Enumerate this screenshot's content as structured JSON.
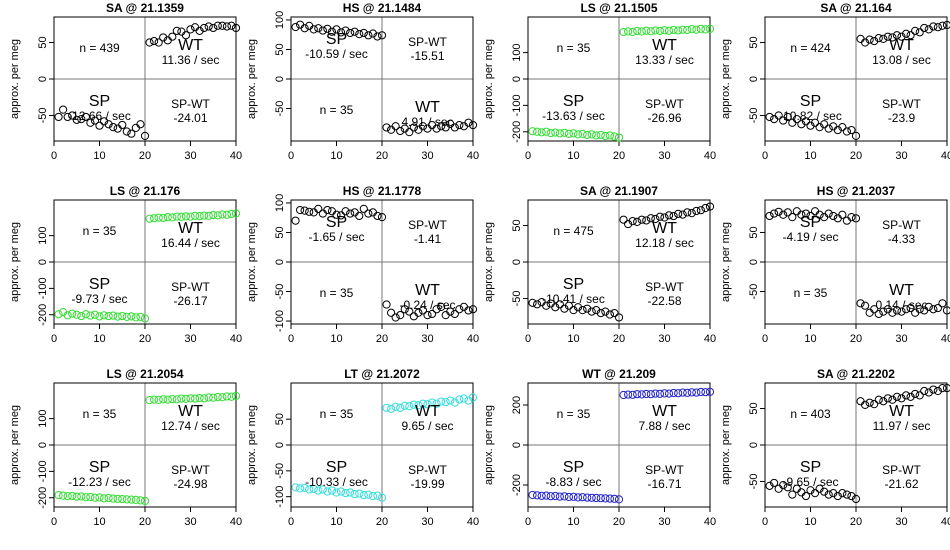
{
  "chart_data": [
    {
      "type": "scatter",
      "title": "SA @ 21.1359",
      "ylabel": "approx. per meg",
      "color": "#000000",
      "xlim": [
        0,
        40
      ],
      "ylim": [
        -85,
        85
      ],
      "yticks": [
        -50,
        0,
        50
      ],
      "xticks": [
        0,
        10,
        20,
        30,
        40
      ],
      "n_label": "n = 439",
      "sp_label": "SP",
      "sp_rate": "-12.66 / sec",
      "wt_label": "WT",
      "wt_rate": "11.36 / sec",
      "diff_label": "SP-WT",
      "diff_value": "-24.01",
      "x": [
        1,
        2,
        3,
        4,
        5,
        6,
        7,
        8,
        9,
        10,
        11,
        12,
        13,
        14,
        15,
        16,
        17,
        18,
        19,
        20,
        21,
        22,
        23,
        24,
        25,
        26,
        27,
        28,
        29,
        30,
        31,
        32,
        33,
        34,
        35,
        36,
        37,
        38,
        39,
        40
      ],
      "y": [
        -52,
        -42,
        -52,
        -50,
        -56,
        -55,
        -52,
        -60,
        -57,
        -64,
        -58,
        -62,
        -66,
        -68,
        -63,
        -72,
        -75,
        -67,
        -62,
        -78,
        50,
        52,
        50,
        57,
        53,
        58,
        66,
        65,
        60,
        68,
        71,
        66,
        70,
        72,
        70,
        73,
        73,
        72,
        73,
        70
      ]
    },
    {
      "type": "scatter",
      "title": "HS @ 21.1484",
      "ylabel": "approx. per meg",
      "color": "#000000",
      "xlim": [
        0,
        40
      ],
      "ylim": [
        -105,
        105
      ],
      "yticks": [
        -50,
        0,
        50,
        100
      ],
      "xticks": [
        0,
        10,
        20,
        30,
        40
      ],
      "n_label": "n = 35",
      "sp_label": "SP",
      "sp_rate": "-10.59 / sec",
      "wt_label": "WT",
      "wt_rate": "4.91 / sec",
      "diff_label": "SP-WT",
      "diff_value": "-15.51",
      "x": [
        1,
        2,
        3,
        4,
        5,
        6,
        7,
        8,
        9,
        10,
        11,
        12,
        13,
        14,
        15,
        16,
        17,
        18,
        19,
        20,
        21,
        22,
        23,
        24,
        25,
        26,
        27,
        28,
        29,
        30,
        31,
        32,
        33,
        34,
        35,
        36,
        37,
        38,
        39,
        40
      ],
      "y": [
        88,
        92,
        86,
        90,
        84,
        86,
        82,
        85,
        80,
        84,
        79,
        82,
        78,
        80,
        76,
        78,
        74,
        77,
        72,
        74,
        -82,
        -86,
        -80,
        -88,
        -84,
        -90,
        -82,
        -86,
        -80,
        -84,
        -78,
        -84,
        -80,
        -82,
        -76,
        -82,
        -78,
        -80,
        -74,
        -78
      ]
    },
    {
      "type": "scatter",
      "title": "LS @ 21.1505",
      "ylabel": "approx. per meg",
      "color": "#33dd33",
      "xlim": [
        0,
        40
      ],
      "ylim": [
        -235,
        235
      ],
      "yticks": [
        -200,
        -100,
        0,
        100
      ],
      "xticks": [
        0,
        10,
        20,
        30,
        40
      ],
      "n_label": "n = 35",
      "sp_label": "SP",
      "sp_rate": "-13.63 / sec",
      "wt_label": "WT",
      "wt_rate": "13.33 / sec",
      "diff_label": "SP-WT",
      "diff_value": "-26.96",
      "x": [
        1,
        2,
        3,
        4,
        5,
        6,
        7,
        8,
        9,
        10,
        11,
        12,
        13,
        14,
        15,
        16,
        17,
        18,
        19,
        20,
        21,
        22,
        23,
        24,
        25,
        26,
        27,
        28,
        29,
        30,
        31,
        32,
        33,
        34,
        35,
        36,
        37,
        38,
        39,
        40
      ],
      "y": [
        -198,
        -200,
        -202,
        -200,
        -205,
        -203,
        -206,
        -204,
        -208,
        -206,
        -210,
        -208,
        -212,
        -210,
        -214,
        -212,
        -216,
        -214,
        -218,
        -222,
        178,
        180,
        178,
        182,
        180,
        183,
        181,
        184,
        182,
        185,
        183,
        186,
        184,
        187,
        186,
        189,
        187,
        190,
        188,
        190
      ]
    },
    {
      "type": "scatter",
      "title": "SA @ 21.164",
      "ylabel": "approx. per meg",
      "color": "#000000",
      "xlim": [
        0,
        40
      ],
      "ylim": [
        -85,
        85
      ],
      "yticks": [
        -50,
        0,
        50
      ],
      "xticks": [
        0,
        10,
        20,
        30,
        40
      ],
      "n_label": "n = 424",
      "sp_label": "SP",
      "sp_rate": "-10.82 / sec",
      "wt_label": "WT",
      "wt_rate": "13.08 / sec",
      "diff_label": "SP-WT",
      "diff_value": "-23.9",
      "x": [
        1,
        2,
        3,
        4,
        5,
        6,
        7,
        8,
        9,
        10,
        11,
        12,
        13,
        14,
        15,
        16,
        17,
        18,
        19,
        20,
        21,
        22,
        23,
        24,
        25,
        26,
        27,
        28,
        29,
        30,
        31,
        32,
        33,
        34,
        35,
        36,
        37,
        38,
        39,
        40
      ],
      "y": [
        -52,
        -55,
        -50,
        -57,
        -52,
        -60,
        -55,
        -62,
        -58,
        -64,
        -60,
        -66,
        -62,
        -68,
        -65,
        -70,
        -66,
        -72,
        -70,
        -78,
        55,
        50,
        54,
        52,
        56,
        55,
        58,
        57,
        60,
        58,
        62,
        60,
        66,
        64,
        70,
        68,
        72,
        71,
        73,
        74
      ]
    },
    {
      "type": "scatter",
      "title": "LS @ 21.176",
      "ylabel": "approx. per meg",
      "color": "#33dd33",
      "xlim": [
        0,
        40
      ],
      "ylim": [
        -235,
        235
      ],
      "yticks": [
        -200,
        -100,
        0,
        100
      ],
      "xticks": [
        0,
        10,
        20,
        30,
        40
      ],
      "n_label": "n = 35",
      "sp_label": "SP",
      "sp_rate": "-9.73 / sec",
      "wt_label": "WT",
      "wt_rate": "16.44 / sec",
      "diff_label": "SP-WT",
      "diff_value": "-26.17",
      "x": [
        1,
        2,
        3,
        4,
        5,
        6,
        7,
        8,
        9,
        10,
        11,
        12,
        13,
        14,
        15,
        16,
        17,
        18,
        19,
        20,
        21,
        22,
        23,
        24,
        25,
        26,
        27,
        28,
        29,
        30,
        31,
        32,
        33,
        34,
        35,
        36,
        37,
        38,
        39,
        40
      ],
      "y": [
        -198,
        -190,
        -202,
        -196,
        -200,
        -205,
        -198,
        -203,
        -200,
        -206,
        -202,
        -205,
        -203,
        -207,
        -205,
        -208,
        -206,
        -210,
        -208,
        -214,
        164,
        166,
        168,
        167,
        170,
        169,
        172,
        171,
        173,
        172,
        175,
        174,
        176,
        175,
        178,
        177,
        180,
        179,
        182,
        184
      ]
    },
    {
      "type": "scatter",
      "title": "HS @ 21.1778",
      "ylabel": "approx. per meg",
      "color": "#000000",
      "xlim": [
        0,
        40
      ],
      "ylim": [
        -105,
        105
      ],
      "yticks": [
        -100,
        -50,
        0,
        50,
        100
      ],
      "xticks": [
        0,
        10,
        20,
        30,
        40
      ],
      "n_label": "n = 35",
      "sp_label": "SP",
      "sp_rate": "-1.65 / sec",
      "wt_label": "WT",
      "wt_rate": "-0.24 / sec",
      "diff_label": "SP-WT",
      "diff_value": "-1.41",
      "x": [
        1,
        2,
        3,
        4,
        5,
        6,
        7,
        8,
        9,
        10,
        11,
        12,
        13,
        14,
        15,
        16,
        17,
        18,
        19,
        20,
        21,
        22,
        23,
        24,
        25,
        26,
        27,
        28,
        29,
        30,
        31,
        32,
        33,
        34,
        35,
        36,
        37,
        38,
        39,
        40
      ],
      "y": [
        70,
        88,
        87,
        85,
        84,
        90,
        82,
        88,
        86,
        80,
        79,
        86,
        82,
        84,
        78,
        90,
        82,
        84,
        78,
        76,
        -72,
        -86,
        -94,
        -90,
        -80,
        -84,
        -92,
        -86,
        -82,
        -90,
        -88,
        -80,
        -76,
        -90,
        -84,
        -88,
        -80,
        -76,
        -82,
        -80
      ]
    },
    {
      "type": "scatter",
      "title": "SA @ 21.1907",
      "ylabel": "approx. per meg",
      "color": "#000000",
      "xlim": [
        0,
        40
      ],
      "ylim": [
        -85,
        85
      ],
      "yticks": [
        -50,
        0,
        50
      ],
      "xticks": [
        0,
        10,
        20,
        30,
        40
      ],
      "n_label": "n = 475",
      "sp_label": "SP",
      "sp_rate": "-10.41 / sec",
      "wt_label": "WT",
      "wt_rate": "12.18 / sec",
      "diff_label": "SP-WT",
      "diff_value": "-22.58",
      "x": [
        1,
        2,
        3,
        4,
        5,
        6,
        7,
        8,
        9,
        10,
        11,
        12,
        13,
        14,
        15,
        16,
        17,
        18,
        19,
        20,
        21,
        22,
        23,
        24,
        25,
        26,
        27,
        28,
        29,
        30,
        31,
        32,
        33,
        34,
        35,
        36,
        37,
        38,
        39,
        40
      ],
      "y": [
        -56,
        -58,
        -55,
        -60,
        -57,
        -62,
        -58,
        -64,
        -60,
        -66,
        -62,
        -66,
        -64,
        -68,
        -66,
        -70,
        -68,
        -72,
        -70,
        -76,
        58,
        52,
        56,
        55,
        58,
        57,
        60,
        59,
        62,
        61,
        64,
        63,
        66,
        65,
        68,
        67,
        70,
        71,
        74,
        76
      ]
    },
    {
      "type": "scatter",
      "title": "HS @ 21.2037",
      "ylabel": "approx. per meg",
      "color": "#000000",
      "xlim": [
        0,
        40
      ],
      "ylim": [
        -105,
        105
      ],
      "yticks": [
        -50,
        0,
        50
      ],
      "xticks": [
        0,
        10,
        20,
        30,
        40
      ],
      "n_label": "n = 35",
      "sp_label": "SP",
      "sp_rate": "-4.19 / sec",
      "wt_label": "WT",
      "wt_rate": "0.14 / sec",
      "diff_label": "SP-WT",
      "diff_value": "-4.33",
      "x": [
        1,
        2,
        3,
        4,
        5,
        6,
        7,
        8,
        9,
        10,
        11,
        12,
        13,
        14,
        15,
        16,
        17,
        18,
        19,
        20,
        21,
        22,
        23,
        24,
        25,
        26,
        27,
        28,
        29,
        30,
        31,
        32,
        33,
        34,
        35,
        36,
        37,
        38,
        39,
        40
      ],
      "y": [
        78,
        82,
        85,
        80,
        84,
        76,
        86,
        80,
        82,
        78,
        86,
        80,
        76,
        82,
        78,
        74,
        80,
        70,
        76,
        74,
        -70,
        -74,
        -86,
        -80,
        -88,
        -84,
        -80,
        -86,
        -82,
        -84,
        -80,
        -78,
        -86,
        -80,
        -82,
        -76,
        -80,
        -78,
        -70,
        -82
      ]
    },
    {
      "type": "scatter",
      "title": "LS @ 21.2054",
      "ylabel": "approx. per meg",
      "color": "#33dd33",
      "xlim": [
        0,
        40
      ],
      "ylim": [
        -235,
        235
      ],
      "yticks": [
        -200,
        -100,
        0,
        100
      ],
      "xticks": [
        0,
        10,
        20,
        30,
        40
      ],
      "n_label": "n = 35",
      "sp_label": "SP",
      "sp_rate": "-12.23 / sec",
      "wt_label": "WT",
      "wt_rate": "12.74 / sec",
      "diff_label": "SP-WT",
      "diff_value": "-24.98",
      "x": [
        1,
        2,
        3,
        4,
        5,
        6,
        7,
        8,
        9,
        10,
        11,
        12,
        13,
        14,
        15,
        16,
        17,
        18,
        19,
        20,
        21,
        22,
        23,
        24,
        25,
        26,
        27,
        28,
        29,
        30,
        31,
        32,
        33,
        34,
        35,
        36,
        37,
        38,
        39,
        40
      ],
      "y": [
        -190,
        -192,
        -194,
        -193,
        -196,
        -195,
        -198,
        -197,
        -200,
        -199,
        -202,
        -201,
        -203,
        -204,
        -205,
        -206,
        -207,
        -208,
        -210,
        -212,
        170,
        172,
        171,
        173,
        172,
        174,
        173,
        176,
        175,
        177,
        176,
        178,
        177,
        180,
        179,
        182,
        181,
        184,
        183,
        186
      ]
    },
    {
      "type": "scatter",
      "title": "LT @ 21.2072",
      "ylabel": "approx. per meg",
      "color": "#33dddd",
      "xlim": [
        0,
        40
      ],
      "ylim": [
        -120,
        120
      ],
      "yticks": [
        -100,
        -50,
        0,
        50
      ],
      "xticks": [
        0,
        10,
        20,
        30,
        40
      ],
      "n_label": "n = 35",
      "sp_label": "SP",
      "sp_rate": "-10.33 / sec",
      "wt_label": "WT",
      "wt_rate": "9.65 / sec",
      "diff_label": "SP-WT",
      "diff_value": "-19.99",
      "x": [
        1,
        2,
        3,
        4,
        5,
        6,
        7,
        8,
        9,
        10,
        11,
        12,
        13,
        14,
        15,
        16,
        17,
        18,
        19,
        20,
        21,
        22,
        23,
        24,
        25,
        26,
        27,
        28,
        29,
        30,
        31,
        32,
        33,
        34,
        35,
        36,
        37,
        38,
        39,
        40
      ],
      "y": [
        -82,
        -84,
        -83,
        -86,
        -85,
        -88,
        -86,
        -90,
        -88,
        -92,
        -90,
        -93,
        -92,
        -95,
        -94,
        -97,
        -96,
        -99,
        -98,
        -102,
        72,
        70,
        74,
        72,
        76,
        75,
        78,
        77,
        80,
        79,
        82,
        80,
        84,
        83,
        86,
        82,
        88,
        90,
        86,
        92
      ]
    },
    {
      "type": "scatter",
      "title": "WT @ 21.209",
      "ylabel": "approx. per meg",
      "color": "#2222cc",
      "xlim": [
        0,
        40
      ],
      "ylim": [
        -310,
        310
      ],
      "yticks": [
        -200,
        0,
        200
      ],
      "xticks": [
        0,
        10,
        20,
        30,
        40
      ],
      "n_label": "n = 35",
      "sp_label": "SP",
      "sp_rate": "-8.83 / sec",
      "wt_label": "WT",
      "wt_rate": "7.88 / sec",
      "diff_label": "SP-WT",
      "diff_value": "-16.71",
      "x": [
        1,
        2,
        3,
        4,
        5,
        6,
        7,
        8,
        9,
        10,
        11,
        12,
        13,
        14,
        15,
        16,
        17,
        18,
        19,
        20,
        21,
        22,
        23,
        24,
        25,
        26,
        27,
        28,
        29,
        30,
        31,
        32,
        33,
        34,
        35,
        36,
        37,
        38,
        39,
        40
      ],
      "y": [
        -250,
        -252,
        -254,
        -253,
        -256,
        -255,
        -258,
        -257,
        -260,
        -259,
        -262,
        -261,
        -263,
        -264,
        -265,
        -266,
        -267,
        -268,
        -269,
        -272,
        250,
        252,
        251,
        254,
        253,
        255,
        254,
        257,
        256,
        258,
        257,
        260,
        259,
        262,
        261,
        263,
        262,
        265,
        264,
        266
      ]
    },
    {
      "type": "scatter",
      "title": "SA @ 21.2202",
      "ylabel": "approx. per meg",
      "color": "#000000",
      "xlim": [
        0,
        40
      ],
      "ylim": [
        -85,
        85
      ],
      "yticks": [
        -50,
        0,
        50
      ],
      "xticks": [
        0,
        10,
        20,
        30,
        40
      ],
      "n_label": "n = 403",
      "sp_label": "SP",
      "sp_rate": "-9.65 / sec",
      "wt_label": "WT",
      "wt_rate": "11.97 / sec",
      "diff_label": "SP-WT",
      "diff_value": "-21.62",
      "x": [
        1,
        2,
        3,
        4,
        5,
        6,
        7,
        8,
        9,
        10,
        11,
        12,
        13,
        14,
        15,
        16,
        17,
        18,
        19,
        20,
        21,
        22,
        23,
        24,
        25,
        26,
        27,
        28,
        29,
        30,
        31,
        32,
        33,
        34,
        35,
        36,
        37,
        38,
        39,
        40
      ],
      "y": [
        -56,
        -52,
        -60,
        -55,
        -58,
        -68,
        -60,
        -65,
        -70,
        -62,
        -66,
        -60,
        -64,
        -68,
        -66,
        -70,
        -66,
        -68,
        -70,
        -74,
        60,
        55,
        58,
        56,
        62,
        60,
        64,
        62,
        66,
        64,
        68,
        66,
        70,
        68,
        74,
        72,
        76,
        74,
        78,
        78
      ]
    }
  ]
}
